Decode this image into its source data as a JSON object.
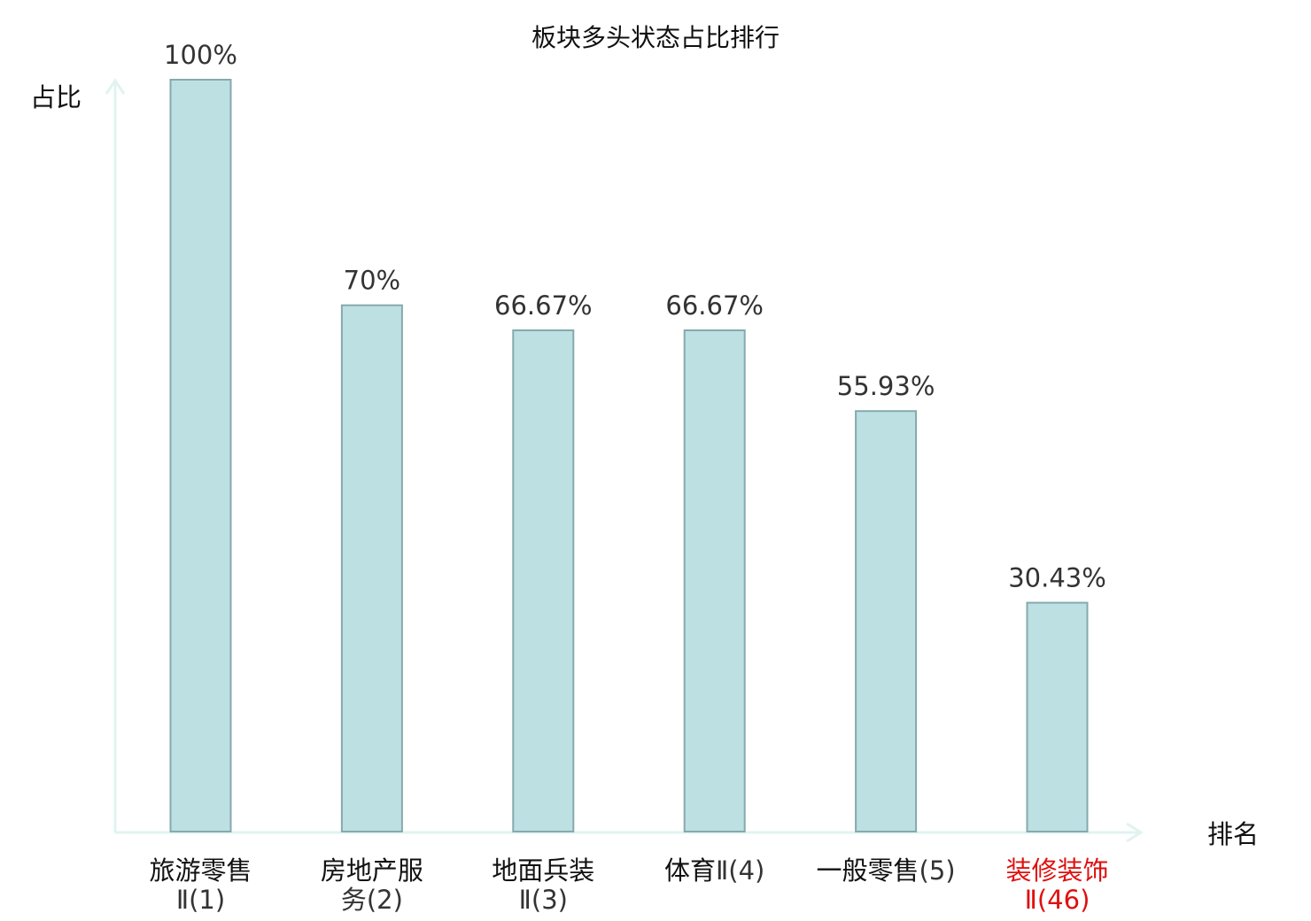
{
  "chart_data": {
    "type": "bar",
    "title": "板块多头状态占比排行",
    "xlabel": "排名",
    "ylabel": "占比",
    "ylim": [
      0,
      100
    ],
    "grid": false,
    "legend": "none",
    "categories": [
      {
        "name": "旅游零售",
        "suffix": "Ⅱ(1)",
        "highlight": false
      },
      {
        "name": "房地产服",
        "suffix": "务(2)",
        "highlight": false
      },
      {
        "name": "地面兵装",
        "suffix": "Ⅱ(3)",
        "highlight": false
      },
      {
        "name": "体育",
        "suffix": "Ⅱ(4)",
        "highlight": false
      },
      {
        "name": "一般零售",
        "suffix": "(5)",
        "highlight": false
      },
      {
        "name": "装修装饰",
        "suffix": "Ⅱ(46)",
        "highlight": true
      }
    ],
    "values": [
      100,
      70,
      66.67,
      66.67,
      55.93,
      30.43
    ],
    "data_labels": [
      "100%",
      "70%",
      "66.67%",
      "66.67%",
      "55.93%",
      "30.43%"
    ],
    "colors": {
      "bar_fill": "#bde0e3",
      "bar_stroke": "#86a9ad",
      "axis": "#e0f3f0",
      "highlight_text": "#e01010",
      "normal_text": "#111111",
      "suffix_text": "#333333"
    }
  }
}
